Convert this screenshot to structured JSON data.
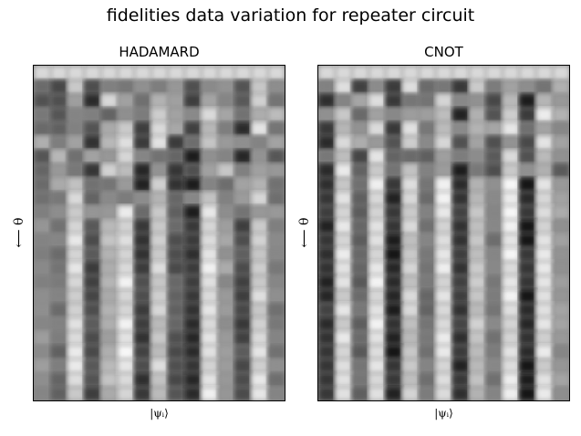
{
  "chart_data": {
    "suptitle": "fidelities data variation for repeater circuit",
    "colormap": "gray",
    "panels": [
      {
        "type": "heatmap",
        "title": "HADAMARD",
        "xlabel": "|ψᵢ⟩",
        "ylabel": "⟵ θ",
        "grid": false,
        "column_profile": [
          0.55,
          0.45,
          0.85,
          0.3,
          0.7,
          0.9,
          0.25,
          0.8,
          0.35,
          0.2,
          0.9,
          0.6,
          0.3,
          0.85,
          0.5
        ],
        "row_noise_fraction_top": 0.45
      },
      {
        "type": "heatmap",
        "title": "CNOT",
        "xlabel": "|ψᵢ⟩",
        "ylabel": "⟵ θ",
        "grid": false,
        "column_profile": [
          0.2,
          0.85,
          0.4,
          0.9,
          0.15,
          0.8,
          0.45,
          0.9,
          0.2,
          0.75,
          0.5,
          0.9,
          0.15,
          0.85,
          0.6
        ],
        "row_noise_fraction_top": 0.35
      }
    ]
  }
}
